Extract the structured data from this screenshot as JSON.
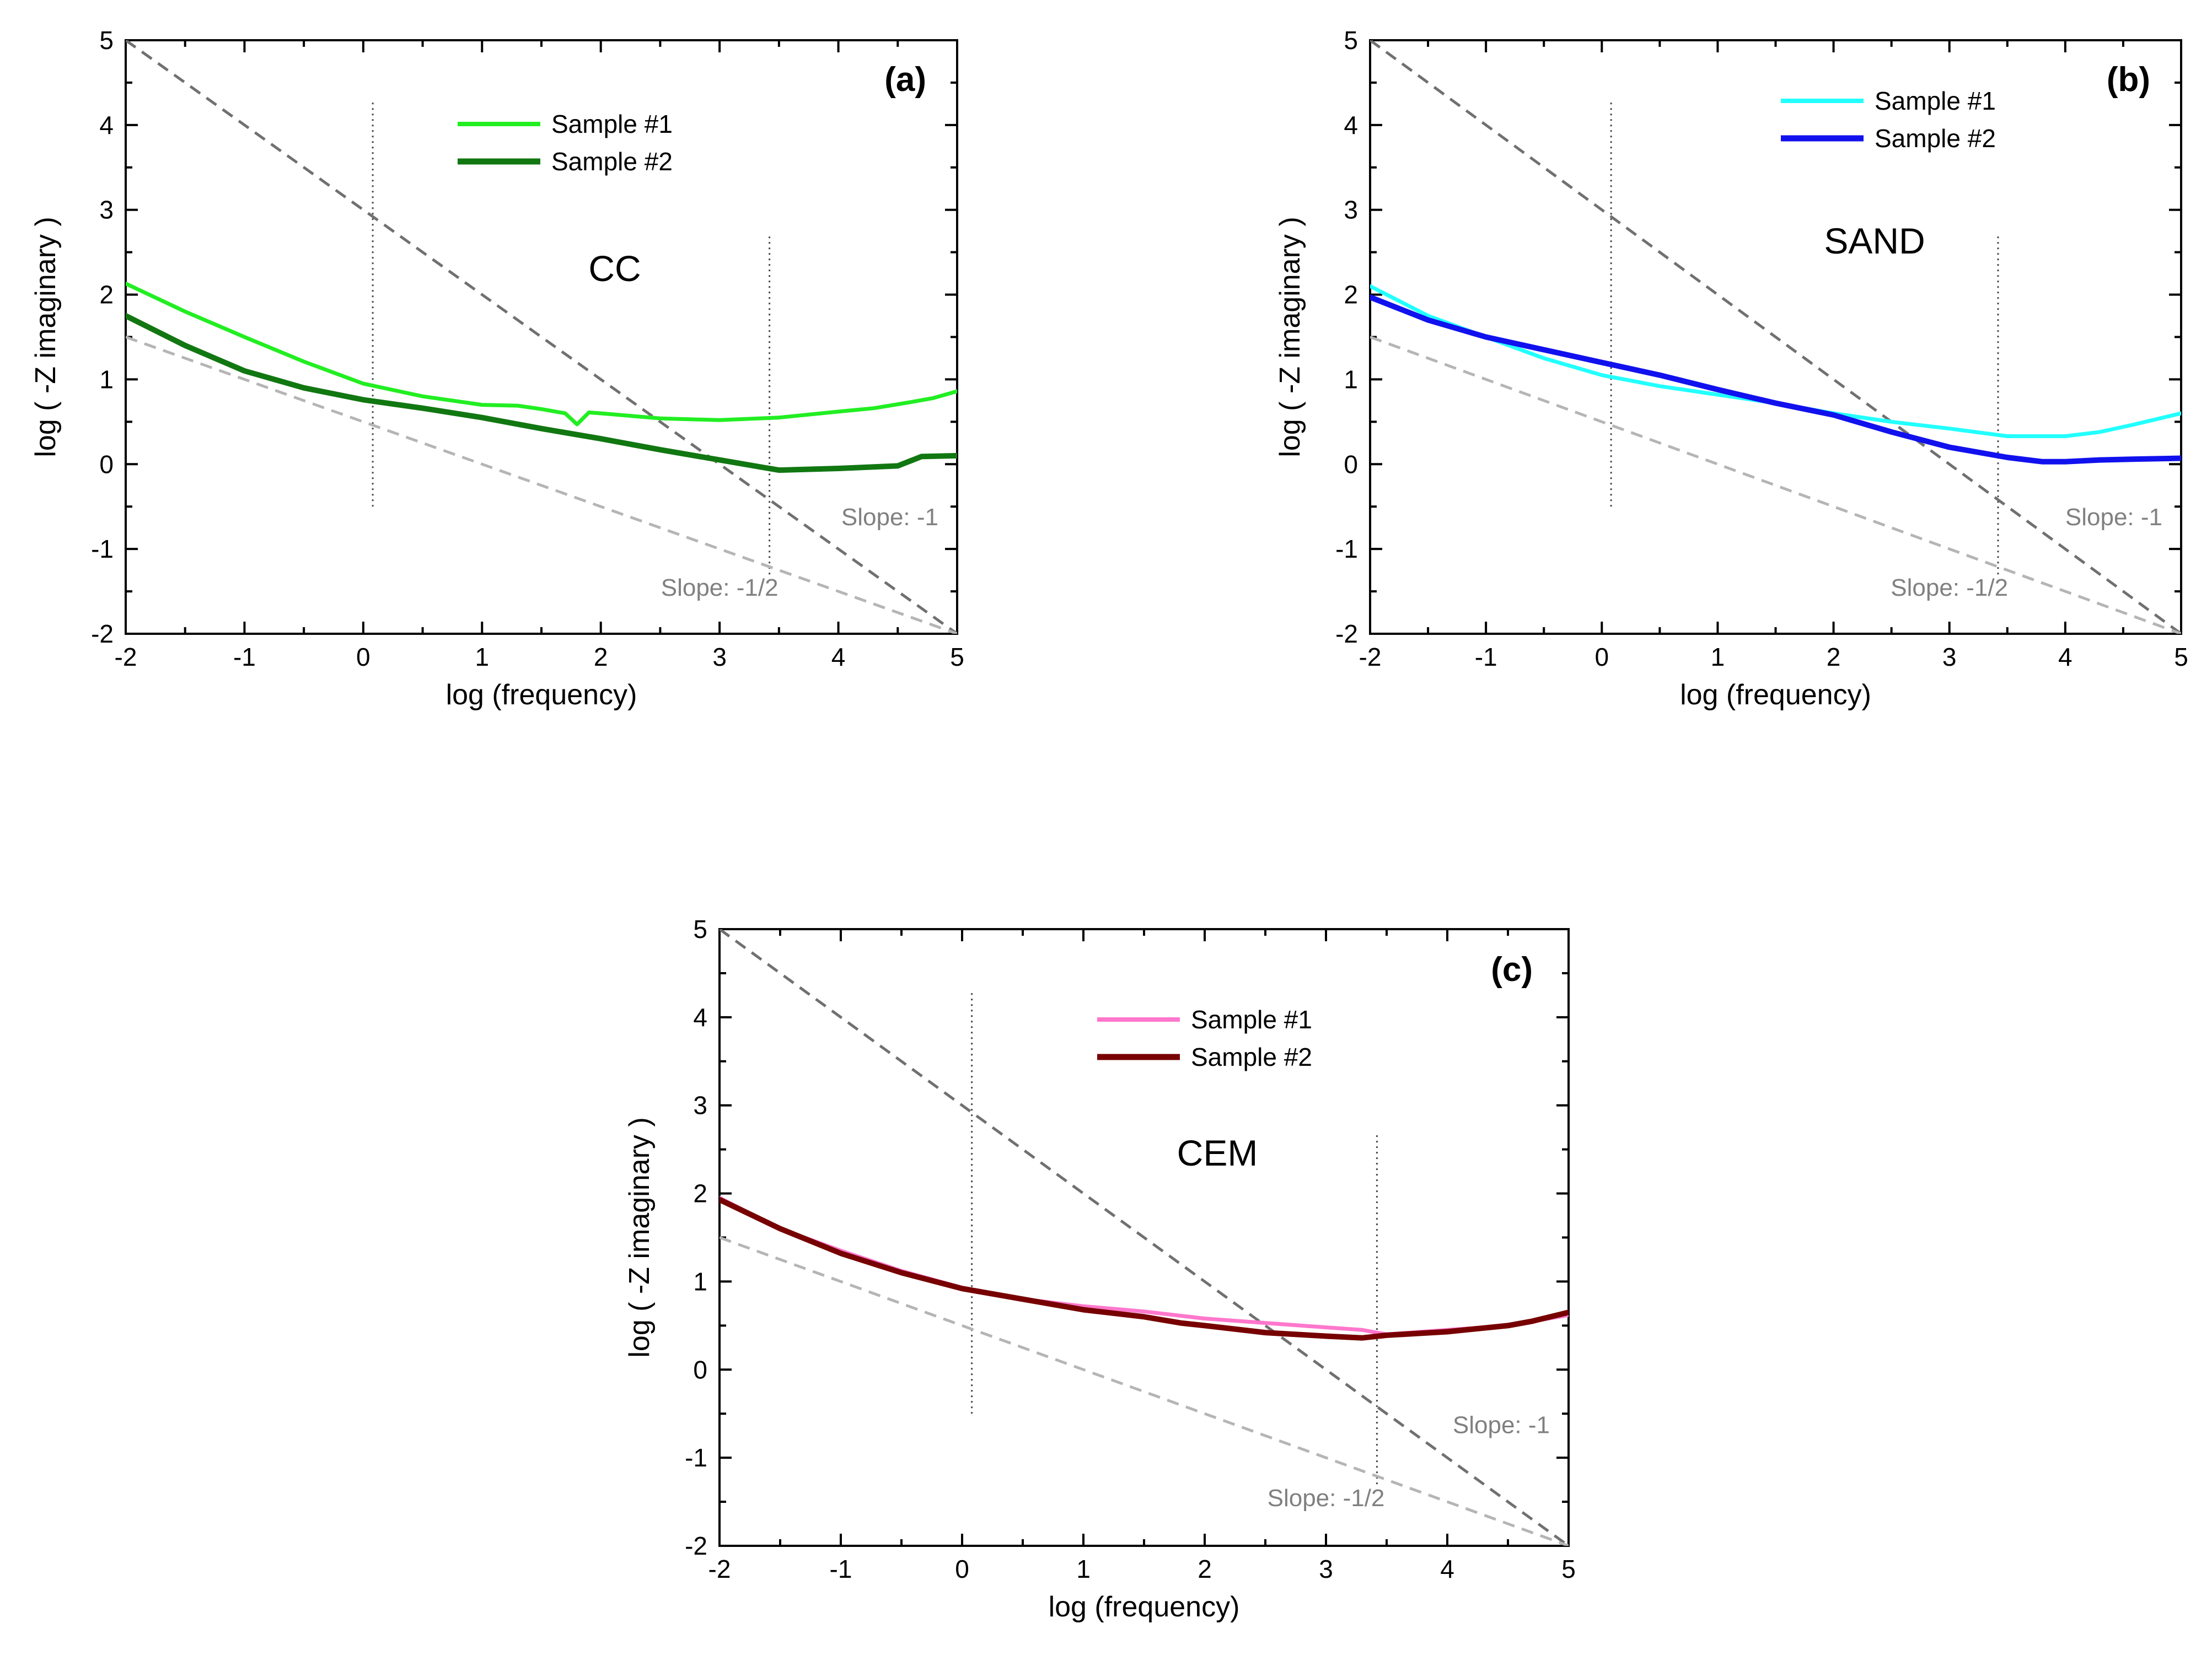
{
  "chart_data": [
    {
      "type": "line",
      "panel": "(a)",
      "material": "CC",
      "xlabel": "log (frequency)",
      "ylabel": "log ( -Z imaginary )",
      "xlim": [
        -2,
        5
      ],
      "ylim": [
        -2,
        5
      ],
      "x_ticks": [
        -2,
        -1,
        0,
        1,
        2,
        3,
        4,
        5
      ],
      "y_ticks": [
        -2,
        -1,
        0,
        1,
        2,
        3,
        4,
        5
      ],
      "legend_position": "top-center",
      "series": [
        {
          "name": "Sample #1",
          "color": "#22ee22",
          "x": [
            -2,
            -1.5,
            -1,
            -0.5,
            0,
            0.5,
            1,
            1.3,
            1.5,
            1.7,
            1.8,
            1.9,
            2,
            2.5,
            3,
            3.5,
            4,
            4.3,
            4.6,
            4.8,
            5
          ],
          "y": [
            2.13,
            1.8,
            1.5,
            1.21,
            0.95,
            0.8,
            0.7,
            0.69,
            0.65,
            0.6,
            0.47,
            0.61,
            0.6,
            0.54,
            0.52,
            0.55,
            0.62,
            0.66,
            0.73,
            0.78,
            0.86
          ]
        },
        {
          "name": "Sample #2",
          "color": "#117711",
          "x": [
            -2,
            -1.5,
            -1,
            -0.5,
            0,
            0.5,
            1,
            1.5,
            2,
            2.5,
            3,
            3.5,
            4,
            4.5,
            4.7,
            5
          ],
          "y": [
            1.75,
            1.4,
            1.1,
            0.9,
            0.76,
            0.66,
            0.55,
            0.42,
            0.3,
            0.17,
            0.05,
            -0.07,
            -0.05,
            -0.02,
            0.09,
            0.1
          ]
        }
      ],
      "reference_lines": [
        {
          "label": "Slope: -1",
          "color": "#707070",
          "x": [
            -2,
            5
          ],
          "y": [
            5,
            -2
          ]
        },
        {
          "label": "Slope: -1/2",
          "color": "#b5b5b5",
          "x": [
            -2,
            5
          ],
          "y": [
            1.5,
            -2
          ]
        }
      ],
      "vertical_markers": [
        {
          "x": 0.08,
          "y_range": [
            -0.5,
            4.3
          ]
        },
        {
          "x": 3.42,
          "y_range": [
            -1.3,
            2.7
          ]
        }
      ],
      "annotations": {
        "slope_minus_1": "Slope: -1",
        "slope_minus_half": "Slope: -1/2"
      }
    },
    {
      "type": "line",
      "panel": "(b)",
      "material": "SAND",
      "xlabel": "log (frequency)",
      "ylabel": "log ( -Z imaginary )",
      "xlim": [
        -2,
        5
      ],
      "ylim": [
        -2,
        5
      ],
      "x_ticks": [
        -2,
        -1,
        0,
        1,
        2,
        3,
        4,
        5
      ],
      "y_ticks": [
        -2,
        -1,
        0,
        1,
        2,
        3,
        4,
        5
      ],
      "legend_position": "top-right",
      "series": [
        {
          "name": "Sample #1",
          "color": "#22ffff",
          "x": [
            -2,
            -1.5,
            -1,
            -0.5,
            0,
            0.5,
            1,
            1.5,
            2,
            2.5,
            3,
            3.5,
            3.8,
            4,
            4.3,
            4.6,
            5
          ],
          "y": [
            2.1,
            1.75,
            1.5,
            1.25,
            1.05,
            0.92,
            0.82,
            0.72,
            0.6,
            0.5,
            0.42,
            0.33,
            0.33,
            0.33,
            0.38,
            0.47,
            0.6
          ]
        },
        {
          "name": "Sample #2",
          "color": "#1111ee",
          "x": [
            -2,
            -1.5,
            -1,
            -0.5,
            0,
            0.5,
            1,
            1.5,
            2,
            2.5,
            3,
            3.5,
            3.8,
            4,
            4.3,
            4.6,
            5
          ],
          "y": [
            1.97,
            1.7,
            1.5,
            1.35,
            1.2,
            1.05,
            0.88,
            0.72,
            0.58,
            0.38,
            0.2,
            0.08,
            0.03,
            0.03,
            0.05,
            0.06,
            0.07
          ]
        }
      ],
      "reference_lines": [
        {
          "label": "Slope: -1",
          "color": "#707070",
          "x": [
            -2,
            5
          ],
          "y": [
            5,
            -2
          ]
        },
        {
          "label": "Slope: -1/2",
          "color": "#b5b5b5",
          "x": [
            -2,
            5
          ],
          "y": [
            1.5,
            -2
          ]
        }
      ],
      "vertical_markers": [
        {
          "x": 0.08,
          "y_range": [
            -0.5,
            4.3
          ]
        },
        {
          "x": 3.42,
          "y_range": [
            -1.3,
            2.7
          ]
        }
      ],
      "annotations": {
        "slope_minus_1": "Slope: -1",
        "slope_minus_half": "Slope: -1/2"
      }
    },
    {
      "type": "line",
      "panel": "(c)",
      "material": "CEM",
      "xlabel": "log (frequency)",
      "ylabel": "log ( -Z imaginary )",
      "xlim": [
        -2,
        5
      ],
      "ylim": [
        -2,
        5
      ],
      "x_ticks": [
        -2,
        -1,
        0,
        1,
        2,
        3,
        4,
        5
      ],
      "y_ticks": [
        -2,
        -1,
        0,
        1,
        2,
        3,
        4,
        5
      ],
      "legend_position": "top-center",
      "series": [
        {
          "name": "Sample #1",
          "color": "#ff77cc",
          "x": [
            -2,
            -1.5,
            -1,
            -0.5,
            0,
            0.5,
            1,
            1.5,
            2,
            2.5,
            3,
            3.3,
            3.5,
            4,
            4.5,
            5
          ],
          "y": [
            1.95,
            1.6,
            1.35,
            1.12,
            0.93,
            0.8,
            0.72,
            0.66,
            0.58,
            0.53,
            0.48,
            0.45,
            0.4,
            0.45,
            0.5,
            0.62
          ]
        },
        {
          "name": "Sample #2",
          "color": "#770000",
          "x": [
            -2,
            -1.5,
            -1,
            -0.5,
            0,
            0.5,
            1,
            1.5,
            1.8,
            2,
            2.5,
            3,
            3.3,
            3.5,
            4,
            4.5,
            4.7,
            5
          ],
          "y": [
            1.93,
            1.6,
            1.32,
            1.1,
            0.92,
            0.8,
            0.68,
            0.6,
            0.53,
            0.5,
            0.42,
            0.38,
            0.36,
            0.39,
            0.43,
            0.5,
            0.55,
            0.65
          ]
        }
      ],
      "reference_lines": [
        {
          "label": "Slope: -1",
          "color": "#707070",
          "x": [
            -2,
            5
          ],
          "y": [
            5,
            -2
          ]
        },
        {
          "label": "Slope: -1/2",
          "color": "#b5b5b5",
          "x": [
            -2,
            5
          ],
          "y": [
            1.5,
            -2
          ]
        }
      ],
      "vertical_markers": [
        {
          "x": 0.08,
          "y_range": [
            -0.5,
            4.3
          ]
        },
        {
          "x": 3.42,
          "y_range": [
            -1.3,
            2.7
          ]
        }
      ],
      "annotations": {
        "slope_minus_1": "Slope: -1",
        "slope_minus_half": "Slope: -1/2"
      }
    }
  ]
}
